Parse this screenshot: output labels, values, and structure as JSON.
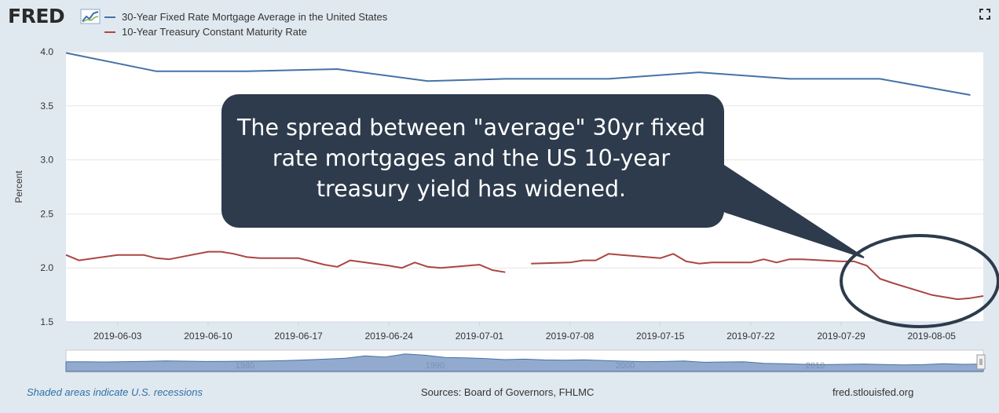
{
  "brand": {
    "logo_text": "FRED",
    "logo_mark": "line-graph-icon"
  },
  "legend": [
    {
      "label": "30-Year Fixed Rate Mortgage Average in the United States",
      "color": "#4572a7"
    },
    {
      "label": "10-Year Treasury Constant Maturity Rate",
      "color": "#aa4643"
    }
  ],
  "annotation": {
    "callout_text": "The spread between \"average\" 30yr fixed rate mortgages and the US 10-year treasury yield has widened.",
    "callout_color": "#2d3b4c",
    "highlight_circle": "ellipse around treasury decline from 2019-07-31 to 2019-08-09"
  },
  "footer": {
    "recessions_note": "Shaded areas indicate U.S. recessions",
    "sources": "Sources: Board of Governors, FHLMC",
    "site": "fred.stlouisfed.org"
  },
  "chart_data": {
    "type": "line",
    "ylabel": "Percent",
    "ylim": [
      1.5,
      4.0
    ],
    "yticks": [
      "1.5",
      "2.0",
      "2.5",
      "3.0",
      "3.5",
      "4.0"
    ],
    "xlim": [
      "2019-05-30",
      "2019-08-09"
    ],
    "xticks": [
      "2019-06-03",
      "2019-06-10",
      "2019-06-17",
      "2019-06-24",
      "2019-07-01",
      "2019-07-08",
      "2019-07-15",
      "2019-07-22",
      "2019-07-29",
      "2019-08-05"
    ],
    "grid": true,
    "series": [
      {
        "name": "30-Year Fixed Rate Mortgage Average in the United States",
        "color": "#4572a7",
        "points": [
          [
            "2019-05-30",
            3.99
          ],
          [
            "2019-06-06",
            3.82
          ],
          [
            "2019-06-13",
            3.82
          ],
          [
            "2019-06-20",
            3.84
          ],
          [
            "2019-06-27",
            3.73
          ],
          [
            "2019-07-03",
            3.75
          ],
          [
            "2019-07-11",
            3.75
          ],
          [
            "2019-07-18",
            3.81
          ],
          [
            "2019-07-25",
            3.75
          ],
          [
            "2019-08-01",
            3.75
          ],
          [
            "2019-08-08",
            3.6
          ]
        ]
      },
      {
        "name": "10-Year Treasury Constant Maturity Rate",
        "color": "#aa4643",
        "points": [
          [
            "2019-05-30",
            2.12
          ],
          [
            "2019-05-31",
            2.07
          ],
          [
            "2019-06-03",
            2.12
          ],
          [
            "2019-06-04",
            2.12
          ],
          [
            "2019-06-05",
            2.12
          ],
          [
            "2019-06-06",
            2.09
          ],
          [
            "2019-06-07",
            2.08
          ],
          [
            "2019-06-10",
            2.15
          ],
          [
            "2019-06-11",
            2.15
          ],
          [
            "2019-06-12",
            2.13
          ],
          [
            "2019-06-13",
            2.1
          ],
          [
            "2019-06-14",
            2.09
          ],
          [
            "2019-06-17",
            2.09
          ],
          [
            "2019-06-18",
            2.06
          ],
          [
            "2019-06-19",
            2.03
          ],
          [
            "2019-06-20",
            2.01
          ],
          [
            "2019-06-21",
            2.07
          ],
          [
            "2019-06-24",
            2.02
          ],
          [
            "2019-06-25",
            2.0
          ],
          [
            "2019-06-26",
            2.05
          ],
          [
            "2019-06-27",
            2.01
          ],
          [
            "2019-06-28",
            2.0
          ],
          [
            "2019-07-01",
            2.03
          ],
          [
            "2019-07-02",
            1.98
          ],
          [
            "2019-07-03",
            1.96
          ],
          [
            "2019-07-04",
            null
          ],
          [
            "2019-07-05",
            2.04
          ],
          [
            "2019-07-08",
            2.05
          ],
          [
            "2019-07-09",
            2.07
          ],
          [
            "2019-07-10",
            2.07
          ],
          [
            "2019-07-11",
            2.13
          ],
          [
            "2019-07-12",
            2.12
          ],
          [
            "2019-07-15",
            2.09
          ],
          [
            "2019-07-16",
            2.13
          ],
          [
            "2019-07-17",
            2.06
          ],
          [
            "2019-07-18",
            2.04
          ],
          [
            "2019-07-19",
            2.05
          ],
          [
            "2019-07-22",
            2.05
          ],
          [
            "2019-07-23",
            2.08
          ],
          [
            "2019-07-24",
            2.05
          ],
          [
            "2019-07-25",
            2.08
          ],
          [
            "2019-07-26",
            2.08
          ],
          [
            "2019-07-29",
            2.06
          ],
          [
            "2019-07-30",
            2.06
          ],
          [
            "2019-07-31",
            2.02
          ],
          [
            "2019-08-01",
            1.9
          ],
          [
            "2019-08-02",
            1.86
          ],
          [
            "2019-08-05",
            1.75
          ],
          [
            "2019-08-06",
            1.73
          ],
          [
            "2019-08-07",
            1.71
          ],
          [
            "2019-08-08",
            1.72
          ],
          [
            "2019-08-09",
            1.74
          ]
        ]
      }
    ],
    "navigator": {
      "labels": [
        "1980",
        "1990",
        "2000",
        "2010"
      ],
      "values": [
        5.6,
        5.6,
        5.5,
        5.7,
        5.9,
        6.2,
        6.0,
        5.8,
        5.9,
        6.0,
        6.1,
        6.4,
        6.8,
        7.3,
        7.9,
        9.4,
        8.6,
        10.6,
        9.8,
        8.4,
        8.1,
        7.7,
        7.0,
        7.3,
        6.8,
        6.6,
        6.9,
        6.4,
        6.0,
        5.7,
        5.8,
        6.1,
        5.3,
        5.5,
        5.6,
        4.6,
        4.4,
        4.0,
        3.8,
        4.0,
        4.2,
        3.9,
        3.6,
        3.8,
        4.4,
        4.0,
        4.2
      ]
    }
  }
}
